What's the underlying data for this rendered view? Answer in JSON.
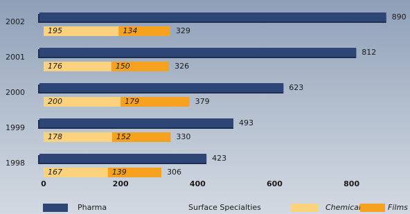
{
  "chart_data": {
    "type": "bar",
    "orientation": "horizontal",
    "categories": [
      "2002",
      "2001",
      "2000",
      "1999",
      "1998"
    ],
    "series": [
      {
        "name": "Pharma",
        "color": "#2d4675",
        "values": [
          890,
          812,
          623,
          493,
          423
        ]
      },
      {
        "name": "Chemicals",
        "color": "#fdd27c",
        "stack": "Surface Specialties",
        "values": [
          195,
          176,
          200,
          178,
          167
        ]
      },
      {
        "name": "Films",
        "color": "#f6a21e",
        "stack": "Surface Specialties",
        "values": [
          134,
          150,
          179,
          152,
          139
        ]
      }
    ],
    "stack_totals": {
      "name": "Surface Specialties",
      "values": [
        329,
        326,
        379,
        330,
        306
      ]
    },
    "xlim": [
      0,
      950
    ],
    "xticks": [
      0,
      200,
      400,
      600,
      800
    ],
    "grid": false
  }
}
